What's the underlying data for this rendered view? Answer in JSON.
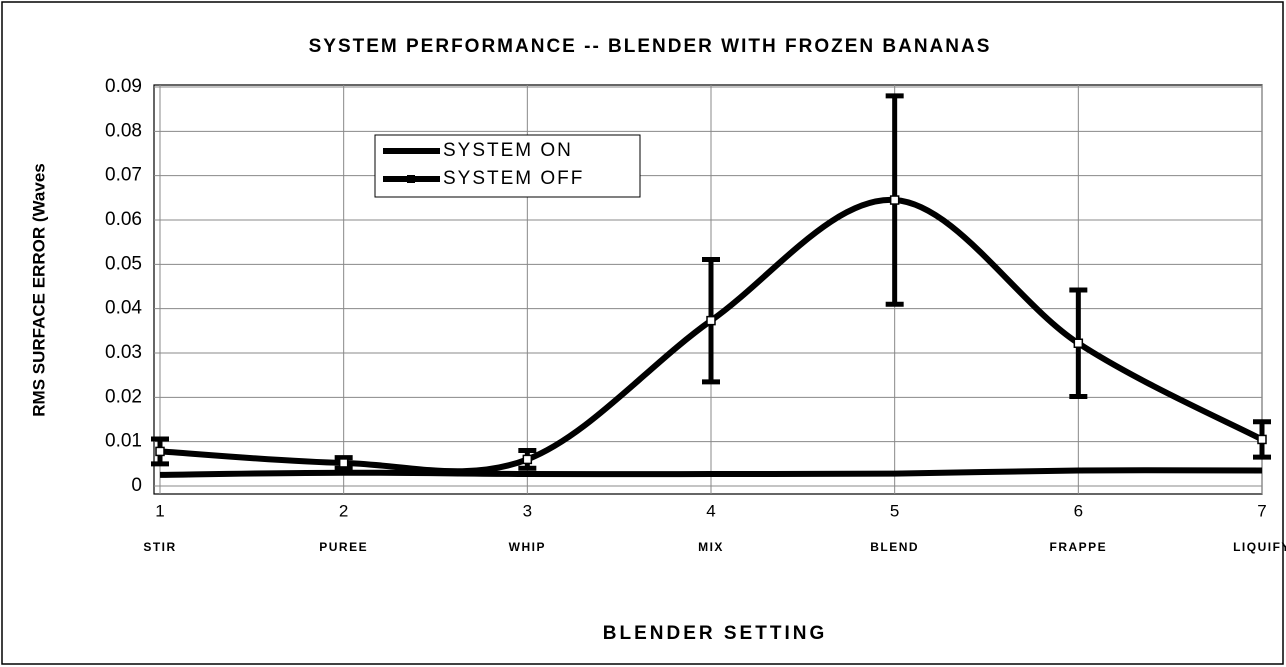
{
  "chart_data": {
    "type": "line",
    "title": "SYSTEM PERFORMANCE -- BLENDER WITH FROZEN BANANAS",
    "x_label": "BLENDER SETTING",
    "y_label": "RMS SURFACE ERROR (Waves",
    "x": [
      1,
      2,
      3,
      4,
      5,
      6,
      7
    ],
    "categories": [
      "STIR",
      "PUREE",
      "WHIP",
      "MIX",
      "BLEND",
      "FRAPPE",
      "LIQUIFY"
    ],
    "xlim": [
      1,
      7
    ],
    "xticks": [
      1,
      2,
      3,
      4,
      5,
      6,
      7
    ],
    "ylim": [
      0,
      0.09
    ],
    "yticks": [
      0,
      0.01,
      0.02,
      0.03,
      0.04,
      0.05,
      0.06,
      0.07,
      0.08,
      0.09
    ],
    "grid": true,
    "smooth": true,
    "legend": "upper left",
    "series": [
      {
        "name": "SYSTEM ON",
        "color": "#000000",
        "values": [
          0.0025,
          0.003,
          0.0027,
          0.0027,
          0.0028,
          0.0035,
          0.0035
        ]
      },
      {
        "name": "SYSTEM OFF",
        "color": "#000000",
        "marker": "square",
        "values": [
          0.0078,
          0.0052,
          0.006,
          0.0373,
          0.0645,
          0.0322,
          0.0105
        ],
        "errors": [
          0.0028,
          0.0012,
          0.002,
          0.0138,
          0.0235,
          0.012,
          0.004
        ]
      }
    ]
  }
}
